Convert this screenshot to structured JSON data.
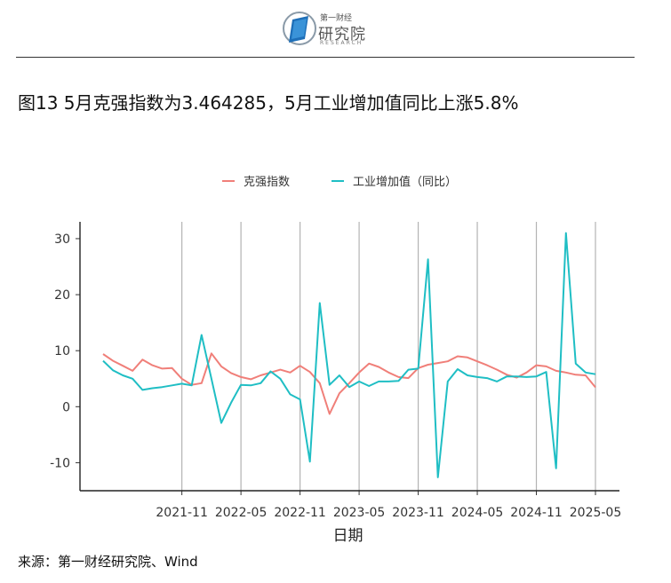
{
  "header": {
    "logo_top": "第一财经",
    "logo_cn": "研究院",
    "logo_en": "RESEARCH"
  },
  "title": "图13 5月克强指数为3.464285，5月工业增加值同比上涨5.8%",
  "source": "来源：第一财经研究院、Wind",
  "colors": {
    "keqiang": "#F07F79",
    "industrial": "#1FBEC4"
  },
  "chart_data": {
    "type": "line",
    "xlabel": "日期",
    "ylabel": "",
    "ylim": [
      -15,
      33
    ],
    "yticks": [
      -10,
      0,
      10,
      20,
      30
    ],
    "xticks": [
      "2021-11",
      "2022-05",
      "2022-11",
      "2023-05",
      "2023-11",
      "2024-05",
      "2024-11",
      "2025-05"
    ],
    "grid": "vertical",
    "legend_position": "top",
    "x": [
      "2021-03",
      "2021-04",
      "2021-05",
      "2021-06",
      "2021-07",
      "2021-08",
      "2021-09",
      "2021-10",
      "2021-11",
      "2021-12",
      "2022-01",
      "2022-02",
      "2022-03",
      "2022-04",
      "2022-05",
      "2022-06",
      "2022-07",
      "2022-08",
      "2022-09",
      "2022-10",
      "2022-11",
      "2022-12",
      "2023-01",
      "2023-02",
      "2023-03",
      "2023-04",
      "2023-05",
      "2023-06",
      "2023-07",
      "2023-08",
      "2023-09",
      "2023-10",
      "2023-11",
      "2023-12",
      "2024-01",
      "2024-02",
      "2024-03",
      "2024-04",
      "2024-05",
      "2024-06",
      "2024-07",
      "2024-08",
      "2024-09",
      "2024-10",
      "2024-11",
      "2024-12",
      "2025-01",
      "2025-02",
      "2025-03",
      "2025-04",
      "2025-05"
    ],
    "series": [
      {
        "name": "克强指数",
        "values": [
          9.4,
          8.2,
          7.3,
          6.4,
          8.4,
          7.4,
          6.8,
          6.9,
          5.0,
          3.9,
          4.2,
          9.5,
          7.2,
          6.0,
          5.3,
          4.9,
          5.6,
          6.1,
          6.6,
          6.1,
          7.3,
          6.2,
          4.2,
          -1.3,
          2.4,
          4.2,
          6.1,
          7.7,
          7.1,
          6.1,
          5.3,
          5.1,
          6.9,
          7.5,
          7.8,
          8.1,
          9.0,
          8.8,
          8.1,
          7.4,
          6.6,
          5.7,
          5.2,
          6.1,
          7.4,
          7.2,
          6.4,
          6.1,
          5.7,
          5.6,
          3.46
        ]
      },
      {
        "name": "工业增加值（同比）",
        "values": [
          8.2,
          6.5,
          5.6,
          5.0,
          3.0,
          3.3,
          3.5,
          3.8,
          4.1,
          3.8,
          12.8,
          5.0,
          -2.9,
          0.7,
          3.9,
          3.8,
          4.2,
          6.3,
          5.0,
          2.2,
          1.3,
          -9.8,
          18.5,
          3.9,
          5.6,
          3.5,
          4.5,
          3.7,
          4.5,
          4.5,
          4.6,
          6.6,
          6.8,
          26.3,
          -12.6,
          4.5,
          6.7,
          5.6,
          5.3,
          5.1,
          4.5,
          5.4,
          5.4,
          5.3,
          5.4,
          6.2,
          -11.0,
          31.0,
          7.7,
          6.1,
          5.8
        ]
      }
    ]
  }
}
